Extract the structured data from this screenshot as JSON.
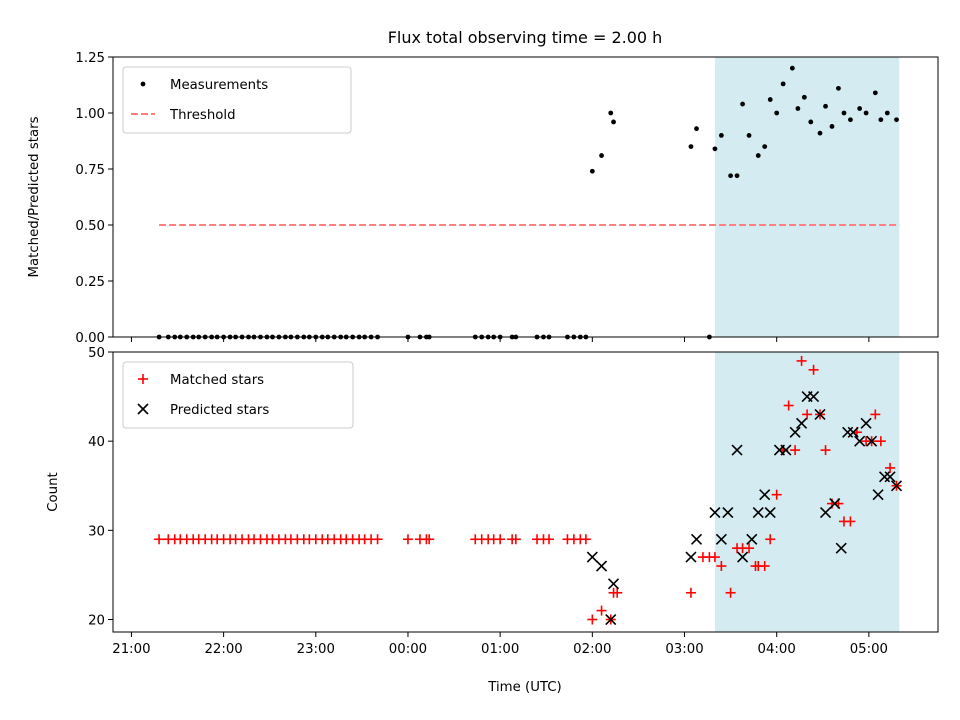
{
  "chart_data": {
    "title": "Flux total observing time = 2.00 h",
    "xlabel": "Time (UTC)",
    "x_unit": "hours since 00:00 UTC (negative = previous day)",
    "xlim": [
      -3.2,
      5.75
    ],
    "xticks": [
      {
        "label": "21:00",
        "value": -3
      },
      {
        "label": "22:00",
        "value": -2
      },
      {
        "label": "23:00",
        "value": -1
      },
      {
        "label": "00:00",
        "value": 0
      },
      {
        "label": "01:00",
        "value": 1
      },
      {
        "label": "02:00",
        "value": 2
      },
      {
        "label": "03:00",
        "value": 3
      },
      {
        "label": "04:00",
        "value": 4
      },
      {
        "label": "05:00",
        "value": 5
      }
    ],
    "shaded_region": {
      "x_start": 3.33,
      "x_end": 5.33,
      "color": "#d3ebf1"
    },
    "panels": [
      {
        "type": "scatter",
        "ylabel": "Matched/Predicted stars",
        "ylim": [
          0,
          1.25
        ],
        "yticks": [
          "0.00",
          "0.25",
          "0.50",
          "0.75",
          "1.00",
          "1.25"
        ],
        "legend": {
          "position": "top-left",
          "entries": [
            "Measurements",
            "Threshold"
          ]
        },
        "series": [
          {
            "name": "Measurements",
            "marker": "dot",
            "color": "#000000",
            "x": [
              -2.7,
              -2.6,
              -2.53,
              -2.47,
              -2.4,
              -2.33,
              -2.27,
              -2.2,
              -2.13,
              -2.07,
              -2.0,
              -1.93,
              -1.87,
              -1.8,
              -1.73,
              -1.67,
              -1.6,
              -1.53,
              -1.47,
              -1.4,
              -1.33,
              -1.27,
              -1.2,
              -1.13,
              -1.07,
              -1.0,
              -0.93,
              -0.87,
              -0.8,
              -0.73,
              -0.67,
              -0.6,
              -0.53,
              -0.47,
              -0.4,
              -0.33,
              0.0,
              0.13,
              0.2,
              0.23,
              0.73,
              0.8,
              0.87,
              0.93,
              1.0,
              1.13,
              1.17,
              1.4,
              1.47,
              1.53,
              1.73,
              1.8,
              1.87,
              1.93,
              2.0,
              2.1,
              2.2,
              2.23,
              3.07,
              3.13,
              3.27,
              3.33,
              3.4,
              3.5,
              3.57,
              3.63,
              3.7,
              3.8,
              3.87,
              3.93,
              4.0,
              4.07,
              4.17,
              4.23,
              4.3,
              4.37,
              4.47,
              4.53,
              4.6,
              4.67,
              4.73,
              4.8,
              4.9,
              4.97,
              5.07,
              5.13,
              5.2,
              5.3
            ],
            "y": [
              0,
              0,
              0,
              0,
              0,
              0,
              0,
              0,
              0,
              0,
              0,
              0,
              0,
              0,
              0,
              0,
              0,
              0,
              0,
              0,
              0,
              0,
              0,
              0,
              0,
              0,
              0,
              0,
              0,
              0,
              0,
              0,
              0,
              0,
              0,
              0,
              0,
              0,
              0,
              0,
              0,
              0,
              0,
              0,
              0,
              0,
              0,
              0,
              0,
              0,
              0,
              0,
              0,
              0,
              0.74,
              0.81,
              1.0,
              0.96,
              0.85,
              0.93,
              0,
              0.84,
              0.9,
              0.72,
              0.72,
              1.04,
              0.9,
              0.81,
              0.85,
              1.06,
              1.0,
              1.13,
              1.2,
              1.02,
              1.07,
              0.96,
              0.91,
              1.03,
              0.94,
              1.11,
              1.0,
              0.97,
              1.02,
              1.0,
              1.09,
              0.97,
              1.0,
              0.97
            ]
          },
          {
            "name": "Threshold",
            "type": "line",
            "style": "dashed",
            "color": "#ff7f7f",
            "x": [
              -2.7,
              5.33
            ],
            "y": [
              0.5,
              0.5
            ]
          }
        ]
      },
      {
        "type": "scatter",
        "ylabel": "Count",
        "ylim": [
          18.6,
          50
        ],
        "yticks": [
          "20",
          "30",
          "40",
          "50"
        ],
        "ytick_values": [
          20,
          30,
          40,
          50
        ],
        "legend": {
          "position": "top-left",
          "entries": [
            "Matched stars",
            "Predicted stars"
          ]
        },
        "series": [
          {
            "name": "Matched stars",
            "marker": "plus",
            "color": "#ff0000",
            "x": [
              -2.7,
              -2.6,
              -2.53,
              -2.47,
              -2.4,
              -2.33,
              -2.27,
              -2.2,
              -2.13,
              -2.07,
              -2.0,
              -1.93,
              -1.87,
              -1.8,
              -1.73,
              -1.67,
              -1.6,
              -1.53,
              -1.47,
              -1.4,
              -1.33,
              -1.27,
              -1.2,
              -1.13,
              -1.07,
              -1.0,
              -0.93,
              -0.87,
              -0.8,
              -0.73,
              -0.67,
              -0.6,
              -0.53,
              -0.47,
              -0.4,
              -0.33,
              0.0,
              0.13,
              0.2,
              0.23,
              0.73,
              0.8,
              0.87,
              0.93,
              1.0,
              1.13,
              1.17,
              1.4,
              1.47,
              1.53,
              1.73,
              1.8,
              1.87,
              1.93,
              2.0,
              2.1,
              2.2,
              2.23,
              2.27,
              3.07,
              3.2,
              3.27,
              3.33,
              3.4,
              3.5,
              3.57,
              3.63,
              3.7,
              3.77,
              3.8,
              3.87,
              3.93,
              4.0,
              4.07,
              4.13,
              4.2,
              4.27,
              4.33,
              4.4,
              4.47,
              4.53,
              4.6,
              4.67,
              4.73,
              4.8,
              4.87,
              4.97,
              5.03,
              5.07,
              5.13,
              5.23,
              5.3
            ],
            "y": [
              29,
              29,
              29,
              29,
              29,
              29,
              29,
              29,
              29,
              29,
              29,
              29,
              29,
              29,
              29,
              29,
              29,
              29,
              29,
              29,
              29,
              29,
              29,
              29,
              29,
              29,
              29,
              29,
              29,
              29,
              29,
              29,
              29,
              29,
              29,
              29,
              29,
              29,
              29,
              29,
              29,
              29,
              29,
              29,
              29,
              29,
              29,
              29,
              29,
              29,
              29,
              29,
              29,
              29,
              20,
              21,
              20,
              23,
              23,
              23,
              27,
              27,
              27,
              26,
              23,
              28,
              28,
              28,
              26,
              26,
              26,
              29,
              34,
              39,
              44,
              39,
              49,
              43,
              48,
              43,
              39,
              33,
              33,
              31,
              31,
              41,
              40,
              40,
              43,
              40,
              37,
              35
            ]
          },
          {
            "name": "Predicted stars",
            "marker": "x",
            "color": "#000000",
            "x": [
              2.0,
              2.1,
              2.2,
              2.23,
              3.07,
              3.13,
              3.33,
              3.4,
              3.47,
              3.57,
              3.63,
              3.73,
              3.8,
              3.87,
              3.93,
              4.03,
              4.1,
              4.2,
              4.27,
              4.33,
              4.4,
              4.47,
              4.53,
              4.63,
              4.7,
              4.77,
              4.83,
              4.9,
              4.97,
              5.03,
              5.1,
              5.17,
              5.23,
              5.3
            ],
            "y": [
              27,
              26,
              20,
              24,
              27,
              29,
              32,
              29,
              32,
              39,
              27,
              29,
              32,
              34,
              32,
              39,
              39,
              41,
              42,
              45,
              45,
              43,
              32,
              33,
              28,
              41,
              41,
              40,
              42,
              40,
              34,
              36,
              36,
              35
            ]
          }
        ]
      }
    ]
  }
}
